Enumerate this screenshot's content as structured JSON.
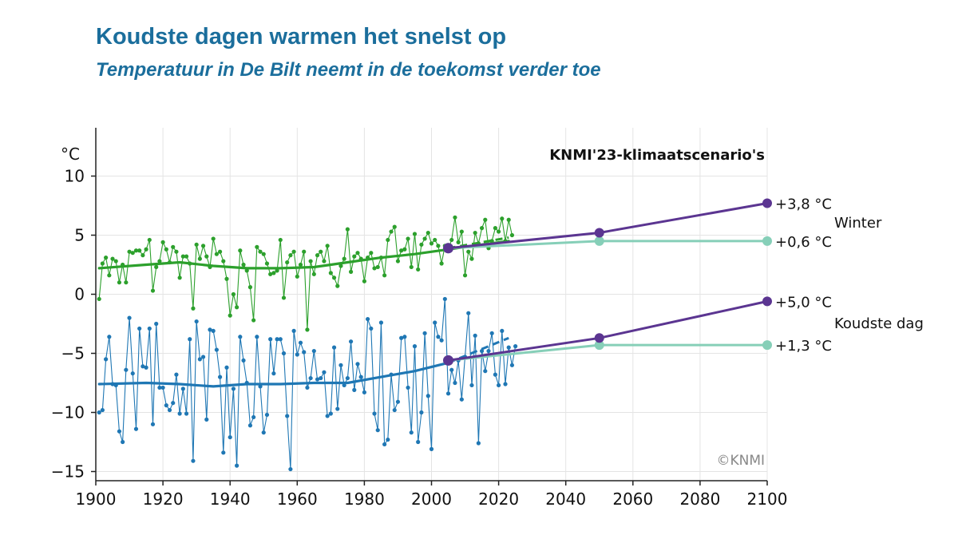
{
  "title": "Koudste dagen warmen het snelst op",
  "subtitle": "Temperatuur in De Bilt neemt in de toekomst verder toe",
  "chart_data": {
    "type": "line",
    "title": "Koudste dagen warmen het snelst op",
    "subtitle": "Temperatuur in De Bilt neemt in de toekomst verder toe",
    "ylabel": "°C",
    "xlim": [
      1900,
      2100
    ],
    "ylim": [
      -16,
      16
    ],
    "xticks": [
      1900,
      1920,
      1940,
      1960,
      1980,
      2000,
      2020,
      2040,
      2060,
      2080,
      2100
    ],
    "yticks": [
      -15,
      -10,
      -5,
      0,
      5,
      10
    ],
    "grid": true,
    "scenario_label": "KNMI'23-klimaatscenario's",
    "copyright": "©KNMI",
    "colors": {
      "winter": "#2ca02c",
      "coldest": "#1f77b4",
      "high": "#5b3591",
      "low": "#86cfb8"
    },
    "series": [
      {
        "name": "Winter",
        "kind": "observed",
        "x_start": 1901,
        "values": [
          -0.4,
          2.6,
          3.1,
          1.6,
          3.0,
          2.8,
          1.0,
          2.5,
          1.0,
          3.6,
          3.5,
          3.7,
          3.7,
          3.3,
          3.8,
          4.6,
          0.3,
          2.3,
          2.8,
          4.4,
          3.8,
          2.7,
          4.0,
          3.6,
          1.4,
          3.2,
          3.2,
          2.6,
          -1.2,
          4.2,
          3.0,
          4.1,
          3.2,
          2.3,
          4.7,
          3.4,
          3.6,
          2.8,
          1.3,
          -1.8,
          0.0,
          -1.1,
          3.7,
          2.5,
          2.0,
          0.6,
          -2.2,
          4.0,
          3.6,
          3.4,
          2.6,
          1.7,
          1.8,
          2.0,
          4.6,
          -0.3,
          2.7,
          3.3,
          3.6,
          1.5,
          2.5,
          3.6,
          -3.0,
          2.8,
          1.7,
          3.3,
          3.6,
          2.8,
          4.1,
          1.8,
          1.4,
          0.7,
          2.4,
          3.0,
          5.5,
          1.9,
          3.2,
          3.5,
          3.0,
          1.1,
          3.1,
          3.5,
          2.2,
          2.3,
          3.1,
          1.6,
          4.6,
          5.3,
          5.7,
          2.8,
          3.7,
          3.8,
          4.7,
          2.3,
          5.1,
          2.1,
          4.2,
          4.7,
          5.2,
          4.3,
          4.6,
          4.1,
          2.6,
          4.1,
          3.8,
          4.6,
          6.5,
          4.4,
          5.3,
          1.6,
          3.6,
          3.0,
          5.2,
          4.3,
          5.6,
          6.3,
          3.9,
          4.5,
          5.6,
          5.3,
          6.4,
          4.5,
          6.3,
          5.0
        ],
        "trend": {
          "x": [
            1901,
            1915,
            1925,
            1935,
            1945,
            1955,
            1965,
            1975,
            1985,
            1995,
            2005,
            2015,
            2023
          ],
          "y": [
            2.2,
            2.5,
            2.7,
            2.4,
            2.2,
            2.2,
            2.3,
            2.7,
            3.1,
            3.4,
            3.8,
            4.2,
            4.5
          ]
        },
        "trend_extension": {
          "x": [
            2005,
            2023
          ],
          "y": [
            3.9,
            4.8
          ]
        }
      },
      {
        "name": "Koudste dag",
        "kind": "observed",
        "x_start": 1901,
        "values": [
          -10.0,
          -9.8,
          -5.5,
          -3.6,
          -7.6,
          -7.7,
          -11.6,
          -12.5,
          -6.4,
          -2.0,
          -6.7,
          -11.4,
          -2.9,
          -6.1,
          -6.2,
          -2.9,
          -11.0,
          -2.5,
          -7.9,
          -7.9,
          -9.4,
          -9.8,
          -9.2,
          -6.8,
          -10.1,
          -8.0,
          -10.1,
          -3.8,
          -14.1,
          -2.3,
          -5.5,
          -5.3,
          -10.6,
          -3.0,
          -3.1,
          -4.7,
          -7.0,
          -13.4,
          -6.2,
          -12.1,
          -8.0,
          -14.5,
          -3.6,
          -5.6,
          -7.5,
          -11.1,
          -10.4,
          -3.6,
          -7.8,
          -11.7,
          -10.2,
          -3.8,
          -6.7,
          -3.8,
          -3.8,
          -5.0,
          -10.3,
          -14.8,
          -3.1,
          -5.1,
          -4.1,
          -4.9,
          -7.9,
          -7.1,
          -4.8,
          -7.2,
          -7.1,
          -6.6,
          -10.3,
          -10.1,
          -4.5,
          -9.7,
          -6.0,
          -7.7,
          -7.1,
          -4.0,
          -8.1,
          -5.9,
          -7.0,
          -8.3,
          -2.1,
          -2.9,
          -10.1,
          -11.5,
          -2.4,
          -12.7,
          -12.3,
          -6.8,
          -9.8,
          -9.1,
          -3.7,
          -3.6,
          -7.9,
          -11.7,
          -4.4,
          -12.5,
          -10.0,
          -3.3,
          -8.6,
          -13.1,
          -2.4,
          -3.6,
          -3.9,
          -0.4,
          -8.4,
          -6.4,
          -7.5,
          -5.6,
          -8.9,
          -5.3,
          -1.6,
          -7.7,
          -3.5,
          -12.6,
          -4.8,
          -6.5,
          -4.8,
          -3.3,
          -6.8,
          -7.7,
          -3.1,
          -7.6,
          -4.5,
          -6.0,
          -4.4
        ],
        "trend": {
          "x": [
            1901,
            1915,
            1925,
            1935,
            1945,
            1955,
            1965,
            1975,
            1985,
            1995,
            2005
          ],
          "y": [
            -7.6,
            -7.5,
            -7.6,
            -7.8,
            -7.6,
            -7.6,
            -7.5,
            -7.5,
            -7.0,
            -6.5,
            -5.8
          ]
        },
        "trend_extension": {
          "x": [
            2005,
            2023
          ],
          "y": [
            -5.8,
            -3.7
          ]
        }
      },
      {
        "name": "Winter +3,8 °C",
        "kind": "scenario",
        "x": [
          2005,
          2050,
          2100
        ],
        "y": [
          3.9,
          5.2,
          7.7
        ],
        "end_label": "+3,8 °C"
      },
      {
        "name": "Winter +0,6 °C",
        "kind": "scenario",
        "x": [
          2005,
          2050,
          2100
        ],
        "y": [
          3.9,
          4.5,
          4.5
        ],
        "end_label": "+0,6 °C"
      },
      {
        "name": "Koudste dag +5,0 °C",
        "kind": "scenario",
        "x": [
          2005,
          2050,
          2100
        ],
        "y": [
          -5.6,
          -3.7,
          -0.6
        ],
        "end_label": "+5,0 °C"
      },
      {
        "name": "Koudste dag +1,3 °C",
        "kind": "scenario",
        "x": [
          2005,
          2050,
          2100
        ],
        "y": [
          -5.6,
          -4.3,
          -4.3
        ],
        "end_label": "+1,3 °C"
      }
    ]
  }
}
